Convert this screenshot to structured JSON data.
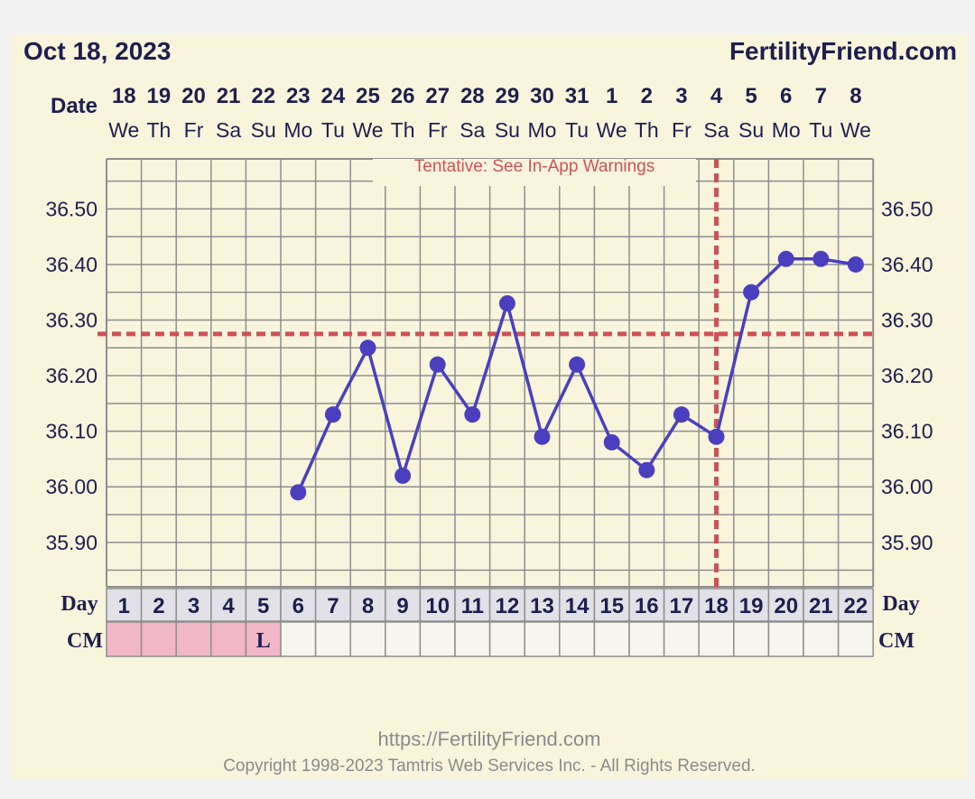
{
  "header": {
    "date": "Oct 18, 2023",
    "site": "FertilityFriend.com"
  },
  "labels": {
    "date_row": "Date",
    "day_row": "Day",
    "cm_row": "CM",
    "tentative": "Tentative: See In-App Warnings"
  },
  "footer": {
    "url": "https://FertilityFriend.com",
    "copyright": "Copyright 1998-2023 Tamtris Web Services Inc. - All Rights Reserved."
  },
  "colors": {
    "background": "#f9f5dd",
    "line": "#4b3fbf",
    "coverline": "#cf5155",
    "menses": "#f2b6c9",
    "grid": "#8e8e8e",
    "text": "#1f1e4e"
  },
  "chart_data": {
    "type": "line",
    "dates": [
      "18",
      "19",
      "20",
      "21",
      "22",
      "23",
      "24",
      "25",
      "26",
      "27",
      "28",
      "29",
      "30",
      "31",
      "1",
      "2",
      "3",
      "4",
      "5",
      "6",
      "7",
      "8"
    ],
    "weekdays": [
      "We",
      "Th",
      "Fr",
      "Sa",
      "Su",
      "Mo",
      "Tu",
      "We",
      "Th",
      "Fr",
      "Sa",
      "Su",
      "Mo",
      "Tu",
      "We",
      "Th",
      "Fr",
      "Sa",
      "Su",
      "Mo",
      "Tu",
      "We"
    ],
    "cycle_days": [
      "1",
      "2",
      "3",
      "4",
      "5",
      "6",
      "7",
      "8",
      "9",
      "10",
      "11",
      "12",
      "13",
      "14",
      "15",
      "16",
      "17",
      "18",
      "19",
      "20",
      "21",
      "22"
    ],
    "cm": [
      "",
      "",
      "",
      "",
      "L",
      "",
      "",
      "",
      "",
      "",
      "",
      "",
      "",
      "",
      "",
      "",
      "",
      "",
      "",
      "",
      "",
      ""
    ],
    "menses_days": [
      1,
      2,
      3,
      4,
      5
    ],
    "series": [
      {
        "values": [
          null,
          null,
          null,
          null,
          null,
          35.99,
          36.13,
          36.25,
          36.02,
          36.22,
          36.13,
          36.33,
          36.09,
          36.22,
          36.08,
          36.03,
          36.13,
          36.09,
          36.35,
          36.41,
          36.41,
          36.4
        ]
      }
    ],
    "ylim": [
      35.82,
      36.59
    ],
    "yticks": [
      "35.90",
      "36.00",
      "36.10",
      "36.20",
      "36.30",
      "36.40",
      "36.50"
    ],
    "coverline": 36.275,
    "ovulation_day": 18,
    "grid": true
  }
}
